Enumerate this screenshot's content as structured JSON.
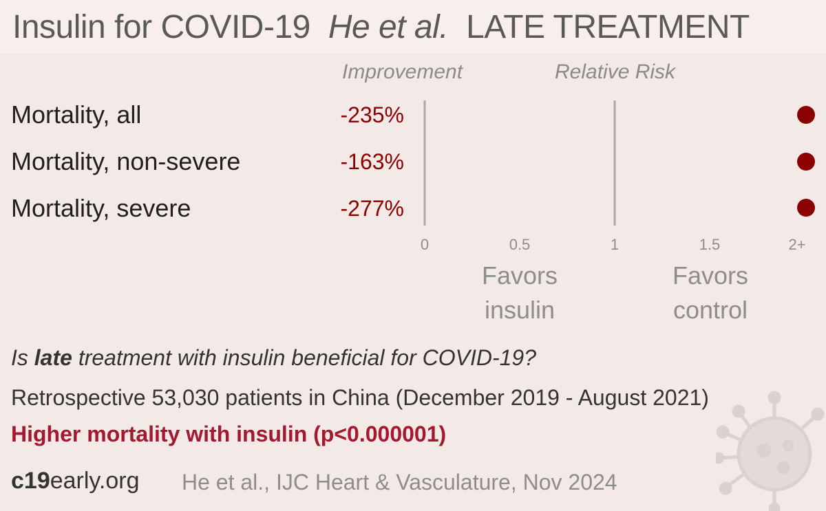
{
  "header": {
    "title_main": "Insulin for COVID-19",
    "title_authors": "He et al.",
    "title_stage": "LATE TREATMENT"
  },
  "columns": {
    "improvement": "Improvement",
    "relative_risk": "Relative Risk"
  },
  "chart_data": {
    "type": "scatter",
    "categories": [
      "Mortality, all",
      "Mortality, non-severe",
      "Mortality, severe"
    ],
    "improvement_labels": [
      "-235%",
      "-163%",
      "-277%"
    ],
    "relative_risk": [
      3.35,
      2.63,
      3.77
    ],
    "xlim": [
      0,
      2
    ],
    "x_ticks": [
      "0",
      "0.5",
      "1",
      "1.5",
      "2+"
    ],
    "reference_lines": [
      0,
      1
    ],
    "favors_left": "Favors insulin",
    "favors_right": "Favors control",
    "marker_color": "#8b0000"
  },
  "summary": {
    "question_pre": "Is ",
    "question_bold": "late",
    "question_post": " treatment with insulin beneficial for COVID-19?",
    "design": "Retrospective 53,030 patients in China (December 2019 - August 2021)",
    "conclusion": "Higher mortality with insulin (p<0.000001)"
  },
  "footer": {
    "site_bold": "c19",
    "site_rest": "early.org",
    "citation": "He et al., IJC Heart & Vasculature, Nov 2024"
  }
}
